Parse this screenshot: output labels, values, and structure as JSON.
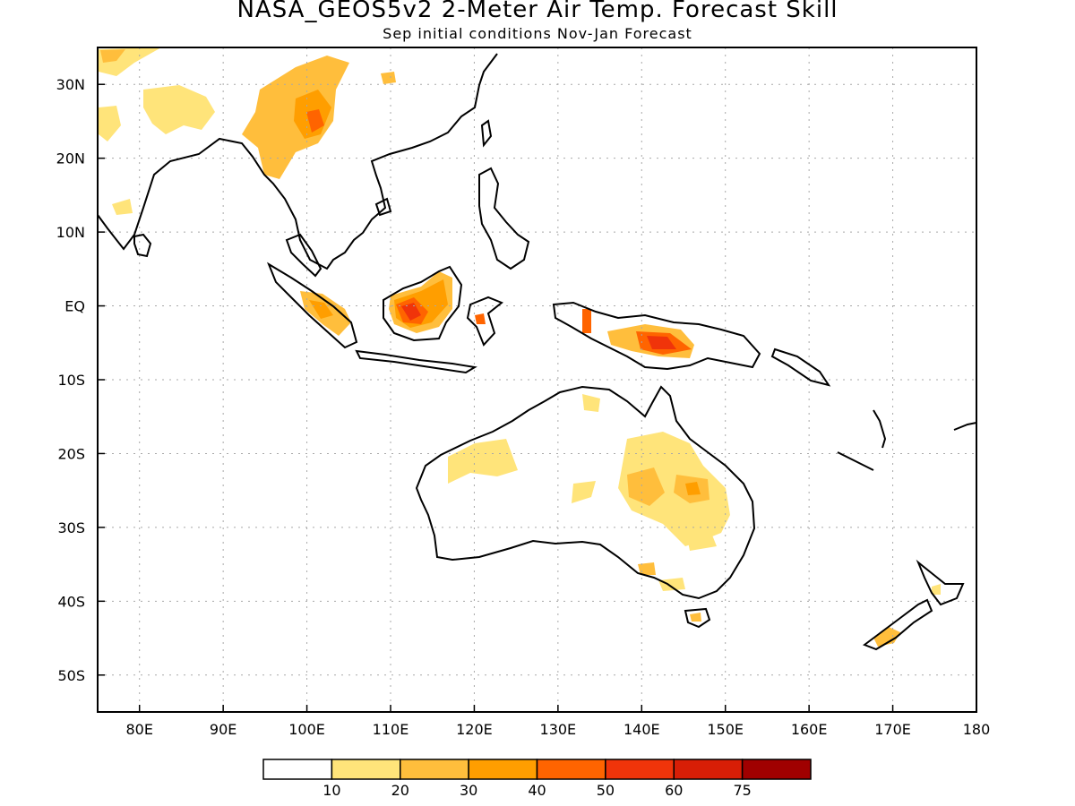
{
  "title": "NASA_GEOS5v2 2-Meter Air Temp. Forecast Skill",
  "subtitle": "Sep initial conditions  Nov-Jan Forecast",
  "lat_labels": [
    {
      "v": 30,
      "label": "30N"
    },
    {
      "v": 20,
      "label": "20N"
    },
    {
      "v": 10,
      "label": "10N"
    },
    {
      "v": 0,
      "label": "EQ"
    },
    {
      "v": -10,
      "label": "10S"
    },
    {
      "v": -20,
      "label": "20S"
    },
    {
      "v": -30,
      "label": "30S"
    },
    {
      "v": -40,
      "label": "40S"
    },
    {
      "v": -50,
      "label": "50S"
    }
  ],
  "lon_labels": [
    {
      "v": 80,
      "label": "80E"
    },
    {
      "v": 90,
      "label": "90E"
    },
    {
      "v": 100,
      "label": "100E"
    },
    {
      "v": 110,
      "label": "110E"
    },
    {
      "v": 120,
      "label": "120E"
    },
    {
      "v": 130,
      "label": "130E"
    },
    {
      "v": 140,
      "label": "140E"
    },
    {
      "v": 150,
      "label": "150E"
    },
    {
      "v": 160,
      "label": "160E"
    },
    {
      "v": 170,
      "label": "170E"
    },
    {
      "v": 180,
      "label": "180"
    }
  ],
  "colorbar": {
    "colors": [
      "#ffffff",
      "#ffe47a",
      "#ffbe3c",
      "#ff9e00",
      "#ff6400",
      "#f0340a",
      "#d81e06",
      "#a00000"
    ],
    "labels": [
      "10",
      "20",
      "30",
      "40",
      "50",
      "60",
      "75"
    ]
  },
  "map": {
    "region": {
      "lon": [
        75,
        180
      ],
      "lat": [
        -55,
        35
      ]
    },
    "skill_regions": [
      {
        "name": "Northern Myanmar / Yunnan",
        "level": 2,
        "peak": 4,
        "lon": 99,
        "lat": 24
      },
      {
        "name": "Northern India",
        "level": 1,
        "lon": 82,
        "lat": 26
      },
      {
        "name": "Borneo",
        "level": 4,
        "peak": 5,
        "lon": 113,
        "lat": 0
      },
      {
        "name": "Sumatra",
        "level": 2,
        "peak": 3,
        "lon": 101,
        "lat": -1
      },
      {
        "name": "New Guinea",
        "level": 4,
        "peak": 6,
        "lon": 142,
        "lat": -5
      },
      {
        "name": "Eastern Australia",
        "level": 1,
        "peak": 3,
        "lon": 145,
        "lat": -24
      },
      {
        "name": "Western Australia",
        "level": 1,
        "lon": 121,
        "lat": -22
      },
      {
        "name": "South Island NZ",
        "level": 2,
        "lon": 169,
        "lat": -45
      }
    ]
  }
}
